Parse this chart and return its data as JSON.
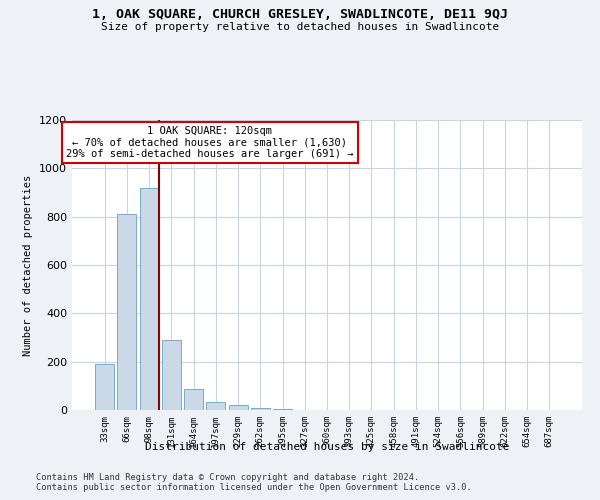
{
  "title": "1, OAK SQUARE, CHURCH GRESLEY, SWADLINCOTE, DE11 9QJ",
  "subtitle": "Size of property relative to detached houses in Swadlincote",
  "xlabel": "Distribution of detached houses by size in Swadlincote",
  "ylabel": "Number of detached properties",
  "bar_color": "#c9d9e8",
  "bar_edge_color": "#7aaac8",
  "annotation_text_line1": "1 OAK SQUARE: 120sqm",
  "annotation_text_line2": "← 70% of detached houses are smaller (1,630)",
  "annotation_text_line3": "29% of semi-detached houses are larger (691) →",
  "annotation_box_color": "#ffffff",
  "annotation_box_edge": "#cc0000",
  "vline_color": "#8b0000",
  "categories": [
    "33sqm",
    "66sqm",
    "98sqm",
    "131sqm",
    "164sqm",
    "197sqm",
    "229sqm",
    "262sqm",
    "295sqm",
    "327sqm",
    "360sqm",
    "393sqm",
    "425sqm",
    "458sqm",
    "491sqm",
    "524sqm",
    "556sqm",
    "589sqm",
    "622sqm",
    "654sqm",
    "687sqm"
  ],
  "values": [
    190,
    810,
    920,
    290,
    85,
    35,
    20,
    10,
    5,
    0,
    0,
    0,
    0,
    0,
    0,
    0,
    0,
    0,
    0,
    0,
    0
  ],
  "ylim": [
    0,
    1200
  ],
  "yticks": [
    0,
    200,
    400,
    600,
    800,
    1000,
    1200
  ],
  "footer_line1": "Contains HM Land Registry data © Crown copyright and database right 2024.",
  "footer_line2": "Contains public sector information licensed under the Open Government Licence v3.0.",
  "bg_color": "#eef2f7",
  "plot_bg_color": "#ffffff",
  "grid_color": "#c8d4e0"
}
